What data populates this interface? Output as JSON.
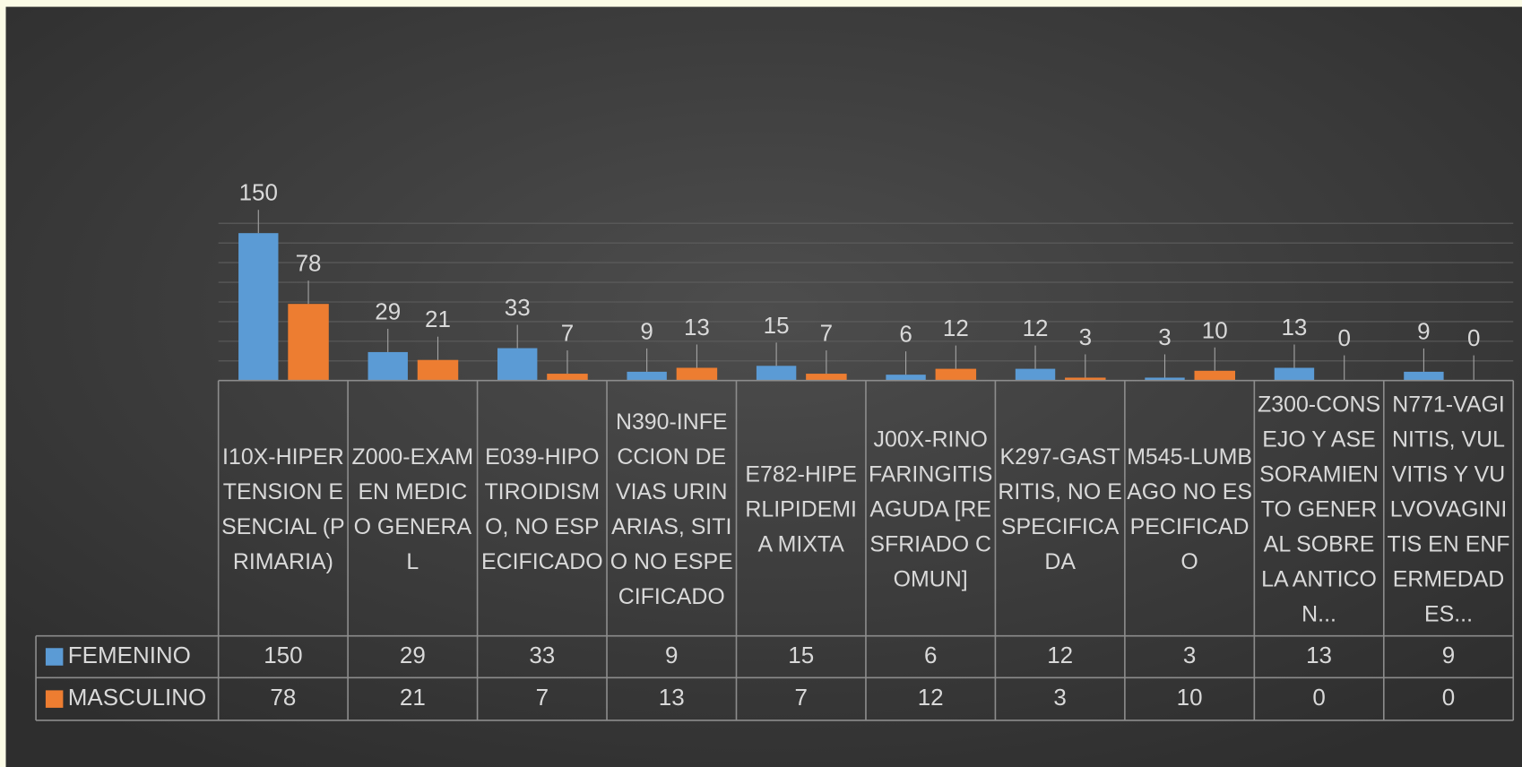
{
  "chart_data": {
    "type": "bar",
    "categories": [
      "I10X-HIPERTENSION ESENCIAL (PRIMARIA)",
      "Z000-EXAMEN MEDICO GENERAL",
      "E039-HIPOTIROIDISMO, NO ESPECIFICADO",
      "N390-INFECCION DE VIAS URINARIAS, SITIO NO ESPECIFICADO",
      "E782-HIPERLIPIDEMIA MIXTA",
      "J00X-RINOFARINGITIS AGUDA [RESFRIADO COMUN]",
      "K297-GASTRITIS, NO ESPECIFICADA",
      "M545-LUMBAGO NO ESPECIFICADO",
      "Z300-CONSEJO Y ASESORAMIENTO GENERAL SOBRE LA ANTICON...",
      "N771-VAGINITIS, VULVITIS Y VULVOVAGINITIS EN ENFERMEDADES..."
    ],
    "series": [
      {
        "name": "FEMENINO",
        "color": "#5b9bd5",
        "values": [
          150,
          29,
          33,
          9,
          15,
          6,
          12,
          3,
          13,
          9
        ]
      },
      {
        "name": "MASCULINO",
        "color": "#ed7d31",
        "values": [
          78,
          21,
          7,
          13,
          7,
          12,
          3,
          10,
          0,
          0
        ]
      }
    ],
    "ylim": [
      0,
      160
    ],
    "yticks": [
      0,
      20,
      40,
      60,
      80,
      100,
      120,
      140,
      160
    ],
    "grid": true,
    "data_table": true
  }
}
